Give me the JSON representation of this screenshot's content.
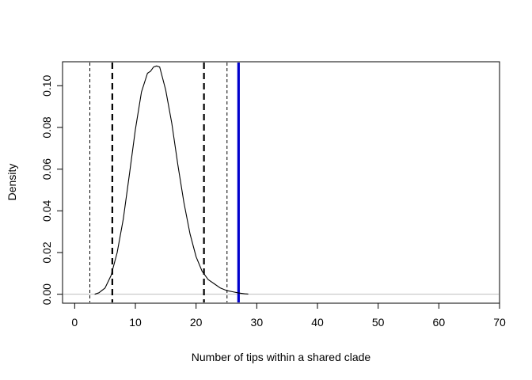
{
  "chart_data": {
    "type": "line",
    "title": "",
    "xlabel": "Number of tips within a shared clade",
    "ylabel": "Density",
    "xlim": [
      -2,
      70
    ],
    "ylim": [
      -0.0043,
      0.1115
    ],
    "x_ticks": [
      0,
      10,
      20,
      30,
      40,
      50,
      60,
      70
    ],
    "y_ticks": [
      0.0,
      0.02,
      0.04,
      0.06,
      0.08,
      0.1
    ],
    "x_tick_labels": [
      "0",
      "10",
      "20",
      "30",
      "40",
      "50",
      "60",
      "70"
    ],
    "y_tick_labels": [
      "0.00",
      "0.02",
      "0.04",
      "0.06",
      "0.08",
      "0.10"
    ],
    "baseline": {
      "y": 0,
      "color": "#bebebe"
    },
    "series": [
      {
        "color": "#000000",
        "x": [
          3.3,
          4.0,
          5.0,
          6.0,
          7.0,
          8.0,
          9.0,
          10.0,
          11.0,
          12.0,
          12.5,
          13.0,
          13.5,
          14.0,
          15.0,
          16.0,
          17.0,
          18.0,
          19.0,
          20.0,
          21.0,
          22.0,
          23.0,
          24.0,
          25.0,
          26.0,
          27.0,
          28.0,
          28.6
        ],
        "y": [
          0.0,
          0.0007,
          0.003,
          0.009,
          0.02,
          0.036,
          0.057,
          0.079,
          0.097,
          0.106,
          0.107,
          0.109,
          0.1095,
          0.109,
          0.098,
          0.082,
          0.062,
          0.044,
          0.029,
          0.018,
          0.011,
          0.007,
          0.005,
          0.003,
          0.0018,
          0.0012,
          0.0006,
          0.0002,
          0.0001
        ]
      }
    ],
    "vertical_lines": [
      {
        "x": 2.5,
        "style": "dashed",
        "weight": "thin",
        "color": "#000000"
      },
      {
        "x": 6.2,
        "style": "dashed",
        "weight": "thick",
        "color": "#000000"
      },
      {
        "x": 21.3,
        "style": "dashed",
        "weight": "thick",
        "color": "#000000"
      },
      {
        "x": 25.1,
        "style": "dashed",
        "weight": "thin",
        "color": "#000000"
      },
      {
        "x": 27.0,
        "style": "solid",
        "weight": "thick",
        "color": "#0000cd"
      }
    ],
    "grid": false,
    "legend": "none"
  }
}
